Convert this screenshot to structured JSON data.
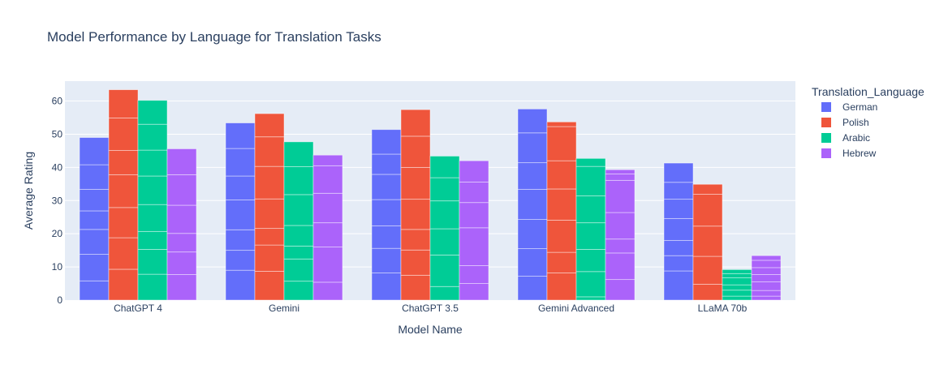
{
  "chart_data": {
    "type": "bar",
    "barmode": "group",
    "title": "Model Performance by Language for Translation Tasks",
    "xlabel": "Model Name",
    "ylabel": "Average Rating",
    "ylim": [
      0,
      66
    ],
    "yticks": [
      0,
      10,
      20,
      30,
      40,
      50,
      60
    ],
    "grid": true,
    "legend_title": "Translation_Language",
    "legend_position": "top-right",
    "categories": [
      "ChatGPT 4",
      "Gemini",
      "ChatGPT 3.5",
      "Gemini Advanced",
      "LLaMA 70b"
    ],
    "series": [
      {
        "name": "German",
        "color": "#636efa",
        "values": [
          49,
          53.4,
          51.4,
          57.6,
          41.3
        ],
        "segments": [
          [
            5.8,
            8,
            7.5,
            5.6,
            6.5,
            7.4,
            8.2
          ],
          [
            9,
            6,
            6.2,
            9,
            7.2,
            8.3,
            7.7
          ],
          [
            8.2,
            7.4,
            6.8,
            7.9,
            7.6,
            6.1,
            7.4
          ],
          [
            7.2,
            8.3,
            8.8,
            9.1,
            8,
            9,
            7.2
          ],
          [
            8.8,
            4.6,
            4.6,
            6.6,
            5.8,
            5.1,
            5.8
          ]
        ]
      },
      {
        "name": "Polish",
        "color": "#ef553b",
        "values": [
          63.4,
          56.2,
          57.4,
          53.7,
          34.9
        ],
        "segments": [
          [
            9.3,
            9.5,
            9.1,
            9.9,
            7.3,
            9.8,
            8.5
          ],
          [
            8.7,
            7.9,
            5,
            8.9,
            9.8,
            8.9,
            7
          ],
          [
            7.5,
            7.6,
            6.2,
            9.1,
            9.6,
            9.4,
            8
          ],
          [
            8.2,
            6.2,
            9.7,
            9.4,
            8.5,
            10.3,
            1.4
          ],
          [
            4.8,
            8.4,
            9.1,
            9.6,
            3
          ]
        ]
      },
      {
        "name": "Arabic",
        "color": "#00cc96",
        "values": [
          60.2,
          47.7,
          43.4,
          42.7,
          9.2
        ],
        "segments": [
          [
            7.8,
            7.5,
            5.4,
            8.1,
            8.6,
            7.8,
            7.8,
            7.2
          ],
          [
            5.7,
            6.7,
            3.9,
            6.2,
            9.3,
            8.4,
            7.5
          ],
          [
            4.1,
            9.5,
            7.9,
            8.4,
            7,
            6.5
          ],
          [
            1,
            7.6,
            6.7,
            8,
            8.1,
            8.9,
            2.4
          ],
          [
            1.2,
            1.8,
            1.6,
            2.1,
            1.3,
            1.2
          ]
        ]
      },
      {
        "name": "Hebrew",
        "color": "#ab63fa",
        "values": [
          45.6,
          43.7,
          42,
          39.3,
          13.4
        ],
        "segments": [
          [
            7.7,
            6.8,
            5.6,
            8.5,
            9.2,
            7.8
          ],
          [
            5.4,
            10.6,
            7.3,
            8.9,
            8.3,
            3.2
          ],
          [
            5,
            5.4,
            11.4,
            7.6,
            6.2,
            6.4
          ],
          [
            6.2,
            8,
            4.2,
            8,
            9.7,
            1.9,
            1.3
          ],
          [
            1.2,
            1.7,
            2.6,
            2.2,
            2.1,
            2.2,
            1.4
          ]
        ]
      }
    ]
  }
}
